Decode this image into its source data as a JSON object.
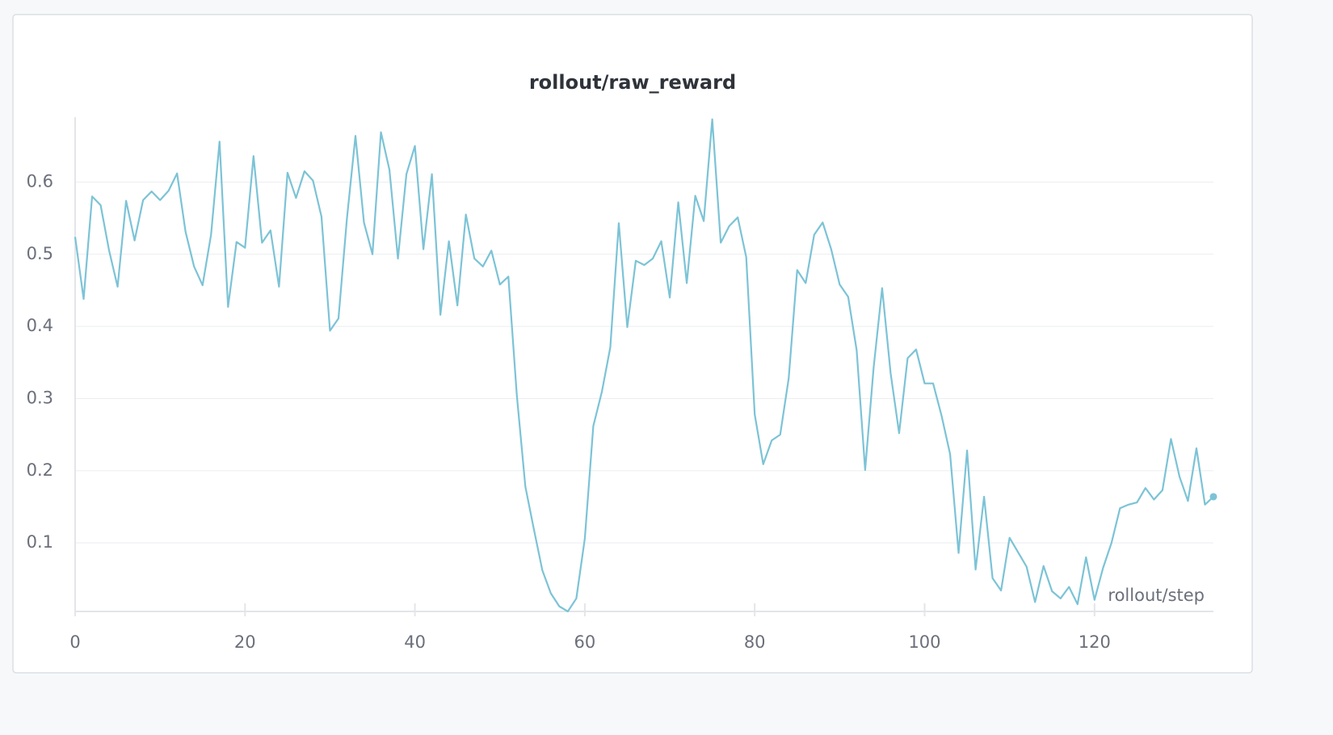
{
  "chart_data": {
    "type": "line",
    "title": "rollout/raw_reward",
    "x_label": "rollout/step",
    "x": [
      0,
      1,
      2,
      3,
      4,
      5,
      6,
      7,
      8,
      9,
      10,
      11,
      12,
      13,
      14,
      15,
      16,
      17,
      18,
      19,
      20,
      21,
      22,
      23,
      24,
      25,
      26,
      27,
      28,
      29,
      30,
      31,
      32,
      33,
      34,
      35,
      36,
      37,
      38,
      39,
      40,
      41,
      42,
      43,
      44,
      45,
      46,
      47,
      48,
      49,
      50,
      51,
      52,
      53,
      54,
      55,
      56,
      57,
      58,
      59,
      60,
      61,
      62,
      63,
      64,
      65,
      66,
      67,
      68,
      69,
      70,
      71,
      72,
      73,
      74,
      75,
      76,
      77,
      78,
      79,
      80,
      81,
      82,
      83,
      84,
      85,
      86,
      87,
      88,
      89,
      90,
      91,
      92,
      93,
      94,
      95,
      96,
      97,
      98,
      99,
      100,
      101,
      102,
      103,
      104,
      105,
      106,
      107,
      108,
      109,
      110,
      111,
      112,
      113,
      114,
      115,
      116,
      117,
      118,
      119,
      120,
      121,
      122,
      123,
      124,
      125,
      126,
      127,
      128,
      129,
      130,
      131,
      132,
      133,
      134
    ],
    "series": [
      {
        "color": "#7cc3d6",
        "values": [
          0.524,
          0.438,
          0.58,
          0.568,
          0.505,
          0.455,
          0.574,
          0.519,
          0.575,
          0.587,
          0.575,
          0.588,
          0.612,
          0.531,
          0.483,
          0.457,
          0.527,
          0.656,
          0.427,
          0.517,
          0.509,
          0.636,
          0.516,
          0.533,
          0.455,
          0.613,
          0.578,
          0.615,
          0.602,
          0.552,
          0.394,
          0.411,
          0.55,
          0.664,
          0.544,
          0.5,
          0.669,
          0.617,
          0.494,
          0.611,
          0.65,
          0.507,
          0.611,
          0.416,
          0.518,
          0.429,
          0.555,
          0.494,
          0.483,
          0.505,
          0.458,
          0.469,
          0.304,
          0.178,
          0.119,
          0.062,
          0.03,
          0.012,
          0.005,
          0.023,
          0.106,
          0.262,
          0.309,
          0.371,
          0.543,
          0.399,
          0.491,
          0.485,
          0.494,
          0.518,
          0.44,
          0.572,
          0.46,
          0.581,
          0.546,
          0.687,
          0.516,
          0.539,
          0.551,
          0.496,
          0.278,
          0.209,
          0.242,
          0.25,
          0.328,
          0.478,
          0.46,
          0.527,
          0.544,
          0.507,
          0.458,
          0.441,
          0.367,
          0.201,
          0.343,
          0.453,
          0.335,
          0.252,
          0.356,
          0.368,
          0.321,
          0.321,
          0.276,
          0.223,
          0.086,
          0.228,
          0.063,
          0.164,
          0.051,
          0.034,
          0.107,
          0.087,
          0.067,
          0.018,
          0.068,
          0.033,
          0.023,
          0.039,
          0.015,
          0.08,
          0.021,
          0.065,
          0.1,
          0.148,
          0.153,
          0.156,
          0.176,
          0.16,
          0.173,
          0.244,
          0.192,
          0.158,
          0.231,
          0.153,
          0.164
        ]
      }
    ],
    "xlim": [
      0,
      134
    ],
    "ylim": [
      0.005,
      0.69
    ],
    "xticks": [
      0,
      20,
      40,
      60,
      80,
      100,
      120
    ],
    "yticks": [
      0.1,
      0.2,
      0.3,
      0.4,
      0.5,
      0.6
    ],
    "grid": true
  }
}
